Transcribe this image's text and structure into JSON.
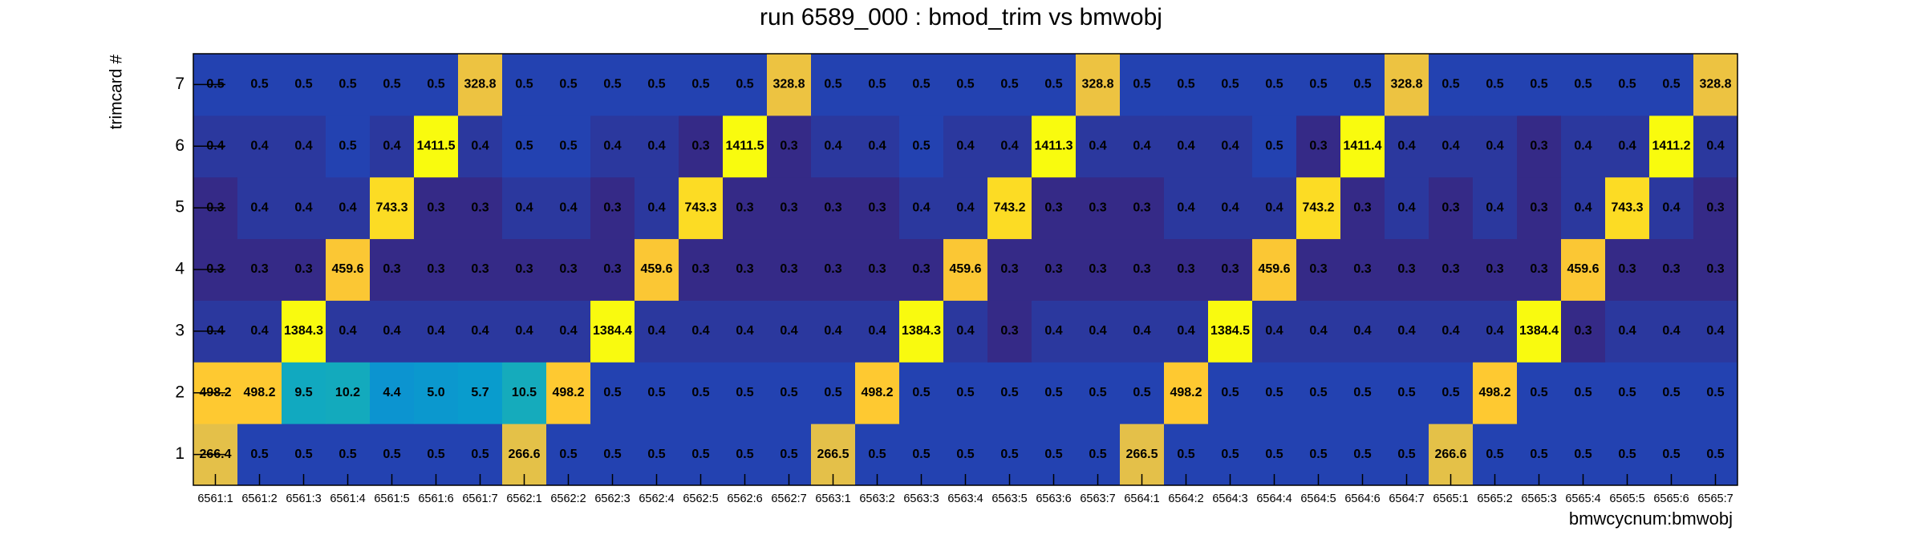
{
  "chart_data": {
    "type": "heatmap",
    "title": "run 6589_000 : bmod_trim vs bmwobj",
    "x_label": "bmwcycnum:bmwobj",
    "y_label": "trimcard #",
    "categories": [
      "6561:1",
      "6561:2",
      "6561:3",
      "6561:4",
      "6561:5",
      "6561:6",
      "6561:7",
      "6562:1",
      "6562:2",
      "6562:3",
      "6562:4",
      "6562:5",
      "6562:6",
      "6562:7",
      "6563:1",
      "6563:2",
      "6563:3",
      "6563:4",
      "6563:5",
      "6563:6",
      "6563:7",
      "6564:1",
      "6564:2",
      "6564:3",
      "6564:4",
      "6564:5",
      "6564:6",
      "6564:7",
      "6565:1",
      "6565:2",
      "6565:3",
      "6565:4",
      "6565:5",
      "6565:6",
      "6565:7"
    ],
    "y": [
      1,
      2,
      3,
      4,
      5,
      6,
      7
    ],
    "values": [
      [
        266.4,
        0.5,
        0.5,
        0.5,
        0.5,
        0.5,
        0.5,
        266.6,
        0.5,
        0.5,
        0.5,
        0.5,
        0.5,
        0.5,
        266.5,
        0.5,
        0.5,
        0.5,
        0.5,
        0.5,
        0.5,
        266.5,
        0.5,
        0.5,
        0.5,
        0.5,
        0.5,
        0.5,
        266.6,
        0.5,
        0.5,
        0.5,
        0.5,
        0.5,
        0.5
      ],
      [
        498.2,
        498.2,
        9.5,
        10.2,
        4.4,
        5.0,
        5.7,
        10.5,
        498.2,
        0.5,
        0.5,
        0.5,
        0.5,
        0.5,
        0.5,
        498.2,
        0.5,
        0.5,
        0.5,
        0.5,
        0.5,
        0.5,
        498.2,
        0.5,
        0.5,
        0.5,
        0.5,
        0.5,
        0.5,
        498.2,
        0.5,
        0.5,
        0.5,
        0.5,
        0.5
      ],
      [
        0.4,
        0.4,
        1384.3,
        0.4,
        0.4,
        0.4,
        0.4,
        0.4,
        0.4,
        1384.4,
        0.4,
        0.4,
        0.4,
        0.4,
        0.4,
        0.4,
        1384.3,
        0.4,
        0.3,
        0.4,
        0.4,
        0.4,
        0.4,
        1384.5,
        0.4,
        0.4,
        0.4,
        0.4,
        0.4,
        0.4,
        1384.4,
        0.3,
        0.4,
        0.4,
        0.4
      ],
      [
        0.3,
        0.3,
        0.3,
        459.6,
        0.3,
        0.3,
        0.3,
        0.3,
        0.3,
        0.3,
        459.6,
        0.3,
        0.3,
        0.3,
        0.3,
        0.3,
        0.3,
        459.6,
        0.3,
        0.3,
        0.3,
        0.3,
        0.3,
        0.3,
        459.6,
        0.3,
        0.3,
        0.3,
        0.3,
        0.3,
        0.3,
        459.6,
        0.3,
        0.3,
        0.3
      ],
      [
        0.3,
        0.4,
        0.4,
        0.4,
        743.3,
        0.3,
        0.3,
        0.4,
        0.4,
        0.3,
        0.4,
        743.3,
        0.3,
        0.3,
        0.3,
        0.3,
        0.4,
        0.4,
        743.2,
        0.3,
        0.3,
        0.3,
        0.4,
        0.4,
        0.4,
        743.2,
        0.3,
        0.4,
        0.3,
        0.4,
        0.3,
        0.4,
        743.3,
        0.4,
        0.3
      ],
      [
        0.4,
        0.4,
        0.4,
        0.5,
        0.4,
        1411.5,
        0.4,
        0.5,
        0.5,
        0.4,
        0.4,
        0.3,
        1411.5,
        0.3,
        0.4,
        0.4,
        0.5,
        0.4,
        0.4,
        1411.3,
        0.4,
        0.4,
        0.4,
        0.4,
        0.5,
        0.3,
        1411.4,
        0.4,
        0.4,
        0.4,
        0.3,
        0.4,
        0.4,
        1411.2,
        0.4
      ],
      [
        0.5,
        0.5,
        0.5,
        0.5,
        0.5,
        0.5,
        328.8,
        0.5,
        0.5,
        0.5,
        0.5,
        0.5,
        0.5,
        328.8,
        0.5,
        0.5,
        0.5,
        0.5,
        0.5,
        0.5,
        328.8,
        0.5,
        0.5,
        0.5,
        0.5,
        0.5,
        0.5,
        328.8,
        0.5,
        0.5,
        0.5,
        0.5,
        0.5,
        0.5,
        328.8
      ]
    ],
    "value_labels": [
      [
        "266.4",
        "0.5",
        "0.5",
        "0.5",
        "0.5",
        "0.5",
        "0.5",
        "266.6",
        "0.5",
        "0.5",
        "0.5",
        "0.5",
        "0.5",
        "0.5",
        "266.5",
        "0.5",
        "0.5",
        "0.5",
        "0.5",
        "0.5",
        "0.5",
        "266.5",
        "0.5",
        "0.5",
        "0.5",
        "0.5",
        "0.5",
        "0.5",
        "266.6",
        "0.5",
        "0.5",
        "0.5",
        "0.5",
        "0.5",
        "0.5"
      ],
      [
        "498.2",
        "498.2",
        "9.5",
        "10.2",
        "4.4",
        "5.0",
        "5.7",
        "10.5",
        "498.2",
        "0.5",
        "0.5",
        "0.5",
        "0.5",
        "0.5",
        "0.5",
        "498.2",
        "0.5",
        "0.5",
        "0.5",
        "0.5",
        "0.5",
        "0.5",
        "498.2",
        "0.5",
        "0.5",
        "0.5",
        "0.5",
        "0.5",
        "0.5",
        "498.2",
        "0.5",
        "0.5",
        "0.5",
        "0.5",
        "0.5"
      ],
      [
        "0.4",
        "0.4",
        "1384.3",
        "0.4",
        "0.4",
        "0.4",
        "0.4",
        "0.4",
        "0.4",
        "1384.4",
        "0.4",
        "0.4",
        "0.4",
        "0.4",
        "0.4",
        "0.4",
        "1384.3",
        "0.4",
        "0.3",
        "0.4",
        "0.4",
        "0.4",
        "0.4",
        "1384.5",
        "0.4",
        "0.4",
        "0.4",
        "0.4",
        "0.4",
        "0.4",
        "1384.4",
        "0.3",
        "0.4",
        "0.4",
        "0.4"
      ],
      [
        "0.3",
        "0.3",
        "0.3",
        "459.6",
        "0.3",
        "0.3",
        "0.3",
        "0.3",
        "0.3",
        "0.3",
        "459.6",
        "0.3",
        "0.3",
        "0.3",
        "0.3",
        "0.3",
        "0.3",
        "459.6",
        "0.3",
        "0.3",
        "0.3",
        "0.3",
        "0.3",
        "0.3",
        "459.6",
        "0.3",
        "0.3",
        "0.3",
        "0.3",
        "0.3",
        "0.3",
        "459.6",
        "0.3",
        "0.3",
        "0.3"
      ],
      [
        "0.3",
        "0.4",
        "0.4",
        "0.4",
        "743.3",
        "0.3",
        "0.3",
        "0.4",
        "0.4",
        "0.3",
        "0.4",
        "743.3",
        "0.3",
        "0.3",
        "0.3",
        "0.3",
        "0.4",
        "0.4",
        "743.2",
        "0.3",
        "0.3",
        "0.3",
        "0.4",
        "0.4",
        "0.4",
        "743.2",
        "0.3",
        "0.4",
        "0.3",
        "0.4",
        "0.3",
        "0.4",
        "743.3",
        "0.4",
        "0.3"
      ],
      [
        "0.4",
        "0.4",
        "0.4",
        "0.5",
        "0.4",
        "1411.5",
        "0.4",
        "0.5",
        "0.5",
        "0.4",
        "0.4",
        "0.3",
        "1411.5",
        "0.3",
        "0.4",
        "0.4",
        "0.5",
        "0.4",
        "0.4",
        "1411.3",
        "0.4",
        "0.4",
        "0.4",
        "0.4",
        "0.5",
        "0.3",
        "1411.4",
        "0.4",
        "0.4",
        "0.4",
        "0.3",
        "0.4",
        "0.4",
        "1411.2",
        "0.4"
      ],
      [
        "0.5",
        "0.5",
        "0.5",
        "0.5",
        "0.5",
        "0.5",
        "328.8",
        "0.5",
        "0.5",
        "0.5",
        "0.5",
        "0.5",
        "0.5",
        "328.8",
        "0.5",
        "0.5",
        "0.5",
        "0.5",
        "0.5",
        "0.5",
        "328.8",
        "0.5",
        "0.5",
        "0.5",
        "0.5",
        "0.5",
        "0.5",
        "328.8",
        "0.5",
        "0.5",
        "0.5",
        "0.5",
        "0.5",
        "0.5",
        "328.8"
      ]
    ],
    "log_z": true,
    "colors": [
      "#352a87",
      "#0f5cdd",
      "#1481d6",
      "#06a4ca",
      "#2eb7a4",
      "#87bf77",
      "#d1bb59",
      "#fec832",
      "#f9fb0e"
    ]
  }
}
